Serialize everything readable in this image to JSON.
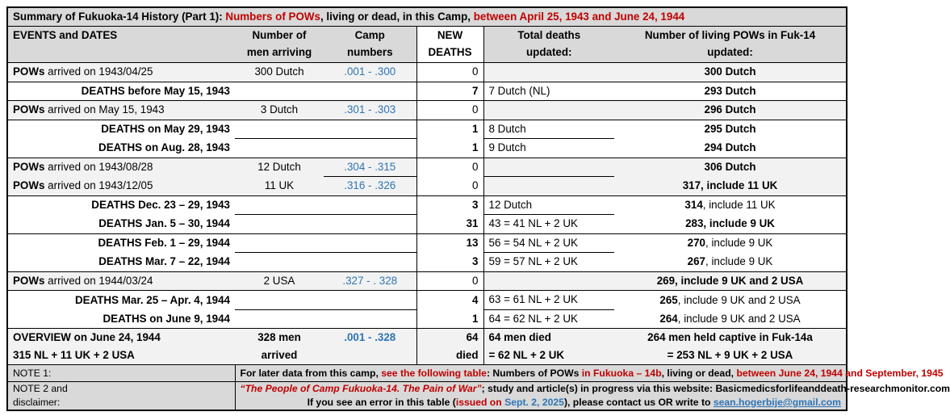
{
  "title": [
    {
      "t": "Summary of Fukuoka-14 History (Part 1): ",
      "c": ""
    },
    {
      "t": "Numbers of POWs",
      "c": "red"
    },
    {
      "t": ", living or dead, in this Camp, ",
      "c": ""
    },
    {
      "t": "between April 25, 1943 and June 24, 1944",
      "c": "red"
    }
  ],
  "headers": {
    "events": "EVENTS and DATES",
    "arriving": [
      "Number of",
      "men arriving"
    ],
    "camp_numbers": [
      "Camp",
      "numbers"
    ],
    "new_deaths": [
      "NEW",
      "DEATHS"
    ],
    "total_deaths": [
      "Total deaths",
      "updated:"
    ],
    "living": [
      "Number of living POWs in Fuk-14",
      "updated:"
    ]
  },
  "rows": [
    {
      "type": "pow",
      "group": true,
      "label_bold": "POWs",
      "label_rest": " arrived on 1943/04/25",
      "arriving": "300 Dutch",
      "camp": ".001 - .300",
      "new": "0",
      "total": "",
      "living_bold": "300 Dutch",
      "living_rest": ""
    },
    {
      "type": "death",
      "group": true,
      "label_bold": "DEATHS before May 15, 1943",
      "label_rest": "",
      "arriving": "",
      "camp": "",
      "new": "7",
      "total": "7 Dutch (NL)",
      "living_bold": "293 Dutch",
      "living_rest": ""
    },
    {
      "type": "pow",
      "group": true,
      "label_bold": "POWs",
      "label_rest": " arrived on May 15, 1943",
      "arriving": "3 Dutch",
      "camp": ".301 - .303",
      "new": "0",
      "total": "",
      "living_bold": "296 Dutch",
      "living_rest": ""
    },
    {
      "type": "death",
      "group": true,
      "label_bold": "DEATHS on May 29, 1943",
      "label_rest": "",
      "arriving": "",
      "camp": "",
      "new": "1",
      "total": "8 Dutch",
      "total_line": true,
      "living_bold": "295 Dutch",
      "living_rest": ""
    },
    {
      "type": "death",
      "group": false,
      "label_bold": "DEATHS on Aug. 28, 1943",
      "label_rest": "",
      "arriving": "",
      "camp": "",
      "new": "1",
      "total": "9 Dutch",
      "living_bold": "294 Dutch",
      "living_rest": ""
    },
    {
      "type": "pow",
      "group": true,
      "label_bold": "POWs",
      "label_rest": " arrived on 1943/08/28",
      "arriving": "12 Dutch",
      "camp": ".304 - .315",
      "new": "0",
      "total": "",
      "total_line": true,
      "camp_line": true,
      "living_bold": "306 Dutch",
      "living_rest": ""
    },
    {
      "type": "pow",
      "group": false,
      "label_bold": "POWs",
      "label_rest": " arrived on 1943/12/05",
      "arriving": "11 UK",
      "camp": ".316 - .326",
      "new": "0",
      "total": "",
      "living_bold": "317, include 11 UK",
      "living_rest": ""
    },
    {
      "type": "death",
      "group": true,
      "label_bold": "DEATHS Dec. 23 – 29, 1943",
      "label_rest": "",
      "arriving": "",
      "camp": "",
      "new": "3",
      "total": "12 Dutch",
      "total_line": true,
      "living_bold": "314",
      "living_rest": ", include 11 UK"
    },
    {
      "type": "death",
      "group": false,
      "label_bold": "DEATHS Jan. 5 – 30, 1944",
      "label_rest": "",
      "arriving": "",
      "camp": "",
      "new": "31",
      "total": "43 = 41 NL + 2 UK",
      "living_bold": "283, include 9 UK",
      "living_rest": ""
    },
    {
      "type": "death",
      "group": true,
      "label_bold": "DEATHS Feb. 1 – 29, 1944",
      "label_rest": "",
      "arriving": "",
      "camp": "",
      "new": "13",
      "total": "56 = 54 NL + 2 UK",
      "total_line": true,
      "living_bold": "270",
      "living_rest": ", include 9 UK"
    },
    {
      "type": "death",
      "group": false,
      "label_bold": "DEATHS Mar. 7 – 22, 1944",
      "label_rest": "",
      "arriving": "",
      "camp": "",
      "new": "3",
      "total": "59 = 57 NL + 2 UK",
      "living_bold": "267",
      "living_rest": ", include 9 UK"
    },
    {
      "type": "pow",
      "group": true,
      "label_bold": "POWs",
      "label_rest": " arrived on 1944/03/24",
      "arriving": "2 USA",
      "camp": ".327 - . 328",
      "new": "0",
      "total": "",
      "living_bold": "269, include 9 UK and 2 USA",
      "living_rest": ""
    },
    {
      "type": "death",
      "group": true,
      "label_bold": "DEATHS Mar. 25 – Apr. 4, 1944",
      "label_rest": "",
      "arriving": "",
      "camp": "",
      "new": "4",
      "total": "63 = 61 NL + 2 UK",
      "total_line": true,
      "living_bold": "265",
      "living_rest": ", include 9 UK and 2 USA"
    },
    {
      "type": "death",
      "group": false,
      "label_bold": "DEATHS on June 9, 1944",
      "label_rest": "",
      "arriving": "",
      "camp": "",
      "new": "1",
      "total": "64 = 62 NL + 2 UK",
      "living_bold": "264",
      "living_rest": ", include 9 UK and 2 USA"
    }
  ],
  "overview": {
    "label": [
      "OVERVIEW on June 24, 1944",
      "315 NL + 11 UK + 2 USA"
    ],
    "arriving": [
      "328 men",
      "arrived"
    ],
    "camp": ".001 - .328",
    "new": [
      "64",
      "died"
    ],
    "total": [
      "64 men died",
      "= 62 NL + 2 UK"
    ],
    "living": [
      "264 men held captive in Fuk-14a",
      "= 253 NL + 9 UK + 2 USA"
    ]
  },
  "note1": {
    "label": "NOTE 1:",
    "text": [
      {
        "t": "For later data from this camp, ",
        "c": ""
      },
      {
        "t": "see the following table",
        "c": "red"
      },
      {
        "t": ": Numbers of POWs ",
        "c": ""
      },
      {
        "t": "in Fukuoka – 14b",
        "c": "red"
      },
      {
        "t": ", living or dead, ",
        "c": ""
      },
      {
        "t": "between June 24, 1944 and September, 1945",
        "c": "red"
      }
    ]
  },
  "note2": {
    "label": [
      "NOTE 2 and",
      "disclaimer:"
    ],
    "line1": [
      {
        "t": "“The People of Camp Fukuoka-14. The Pain of War”",
        "c": "red it"
      },
      {
        "t": "; study and article(s) in progress via this website: Basicmedicsforlifeanddeath-researchmonitor.com",
        "c": ""
      }
    ],
    "line2": [
      {
        "t": "If you see an error in this table (",
        "c": ""
      },
      {
        "t": "issued on ",
        "c": "red"
      },
      {
        "t": "Sept. 2, 2025",
        "c": "blue"
      },
      {
        "t": "), please contact us OR write to ",
        "c": ""
      },
      {
        "t": "sean.hogerbije@gmail.com",
        "c": "link"
      }
    ]
  },
  "colors": {
    "red": "#c00000",
    "blue": "#2e75b6",
    "gray": "#d9d9d9",
    "row_gray": "#f2f2f2"
  }
}
